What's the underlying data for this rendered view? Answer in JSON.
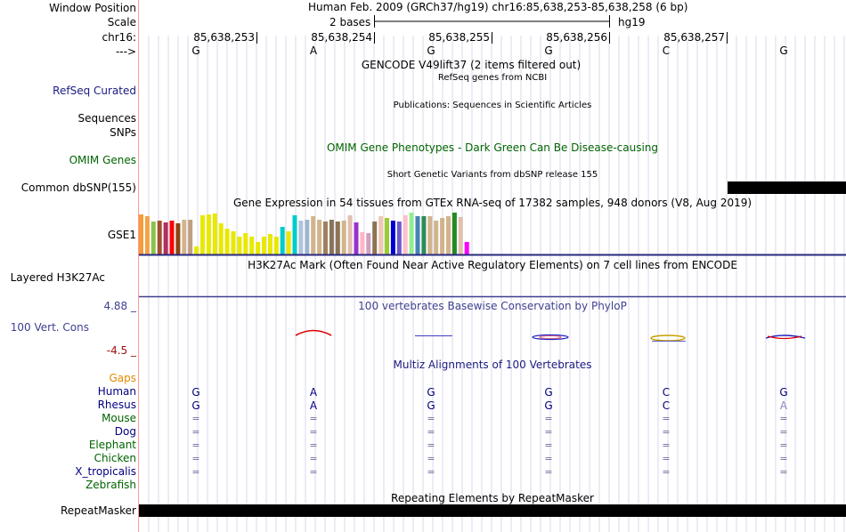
{
  "header": {
    "window_position_label": "Window Position",
    "window_position_value": "Human Feb. 2009 (GRCh37/hg19)   chr16:85,638,253-85,638,258 (6 bp)",
    "scale_label": "Scale",
    "scale_text": "2 bases",
    "assembly": "hg19",
    "chrom_label": "chr16:",
    "strand_label": "--->",
    "positions": [
      "85,638,253",
      "85,638,254",
      "85,638,255",
      "85,638,256",
      "85,638,257"
    ]
  },
  "bases": [
    "G",
    "A",
    "G",
    "G",
    "C",
    "G"
  ],
  "tracks": {
    "gencode_title": "GENCODE V49lift37 (2 items filtered out)",
    "refseq_subtitle": "RefSeq genes from NCBI",
    "refseq_label": "RefSeq Curated",
    "publications_title": "Publications: Sequences in Scientific Articles",
    "sequences_label": "Sequences",
    "snps_label": "SNPs",
    "omim_title": "OMIM Gene Phenotypes - Dark Green Can Be Disease-causing",
    "omim_label": "OMIM Genes",
    "dbsnp_title": "Short Genetic Variants from dbSNP release 155",
    "dbsnp_label": "Common dbSNP(155)",
    "gtex_title": "Gene Expression in 54 tissues from GTEx RNA-seq of 17382 samples, 948 donors (V8, Aug 2019)",
    "gtex_label": "GSE1",
    "h3k27_title": "H3K27Ac Mark (Often Found Near Active Regulatory Elements) on 7 cell lines from ENCODE",
    "h3k27_label": "Layered H3K27Ac",
    "cons_max": "4.88 _",
    "cons_min": "-4.5 _",
    "cons_title": "100 vertebrates Basewise Conservation by PhyloP",
    "cons_label": "100 Vert. Cons",
    "multiz_title": "Multiz Alignments of 100 Vertebrates",
    "repeat_title": "Repeating Elements by RepeatMasker",
    "repeat_label": "RepeatMasker"
  },
  "species": [
    {
      "name": "Gaps",
      "color": "#e08a00",
      "row": []
    },
    {
      "name": "Human",
      "color": "#000080",
      "row": [
        "G",
        "A",
        "G",
        "G",
        "C",
        "G"
      ]
    },
    {
      "name": "Rhesus",
      "color": "#000080",
      "row": [
        "G",
        "A",
        "G",
        "G",
        "C",
        "A"
      ]
    },
    {
      "name": "Mouse",
      "color": "#006400",
      "row": [
        "=",
        "=",
        "=",
        "=",
        "=",
        "="
      ]
    },
    {
      "name": "Dog",
      "color": "#000080",
      "row": [
        "=",
        "=",
        "=",
        "=",
        "=",
        "="
      ]
    },
    {
      "name": "Elephant",
      "color": "#006400",
      "row": [
        "=",
        "=",
        "=",
        "=",
        "=",
        "="
      ]
    },
    {
      "name": "Chicken",
      "color": "#006400",
      "row": [
        "=",
        "=",
        "=",
        "=",
        "=",
        "="
      ]
    },
    {
      "name": "X_tropicalis",
      "color": "#000080",
      "row": [
        "=",
        "=",
        "=",
        "=",
        "=",
        "="
      ]
    },
    {
      "name": "Zebrafish",
      "color": "#006400",
      "row": []
    }
  ],
  "gtex_bars": [
    {
      "v": 0.93,
      "c": "#f59b3a"
    },
    {
      "v": 0.9,
      "c": "#f1a348"
    },
    {
      "v": 0.78,
      "c": "#8bc34a"
    },
    {
      "v": 0.79,
      "c": "#a0522d"
    },
    {
      "v": 0.75,
      "c": "#b03060"
    },
    {
      "v": 0.8,
      "c": "#ff0000"
    },
    {
      "v": 0.72,
      "c": "#8b4513"
    },
    {
      "v": 0.82,
      "c": "#d2b48c"
    },
    {
      "v": 0.82,
      "c": "#c0a080"
    },
    {
      "v": 0.18,
      "c": "#e8e800"
    },
    {
      "v": 0.92,
      "c": "#e8e800"
    },
    {
      "v": 0.93,
      "c": "#e8e800"
    },
    {
      "v": 0.95,
      "c": "#e8e800"
    },
    {
      "v": 0.72,
      "c": "#e8e800"
    },
    {
      "v": 0.6,
      "c": "#e8e800"
    },
    {
      "v": 0.55,
      "c": "#e8e800"
    },
    {
      "v": 0.42,
      "c": "#e8e800"
    },
    {
      "v": 0.5,
      "c": "#e8e800"
    },
    {
      "v": 0.42,
      "c": "#e8e800"
    },
    {
      "v": 0.3,
      "c": "#e8e800"
    },
    {
      "v": 0.42,
      "c": "#e8e800"
    },
    {
      "v": 0.48,
      "c": "#e8e800"
    },
    {
      "v": 0.42,
      "c": "#e8e800"
    },
    {
      "v": 0.65,
      "c": "#00cccc"
    },
    {
      "v": 0.55,
      "c": "#e8e800"
    },
    {
      "v": 0.92,
      "c": "#00cccc"
    },
    {
      "v": 0.8,
      "c": "#b0c4de"
    },
    {
      "v": 0.82,
      "c": "#9fb6cd"
    },
    {
      "v": 0.9,
      "c": "#d2b48c"
    },
    {
      "v": 0.82,
      "c": "#d2b48c"
    },
    {
      "v": 0.78,
      "c": "#a08060"
    },
    {
      "v": 0.82,
      "c": "#8b7355"
    },
    {
      "v": 0.78,
      "c": "#8b7355"
    },
    {
      "v": 0.8,
      "c": "#d2b48c"
    },
    {
      "v": 0.91,
      "c": "#e0c0b0"
    },
    {
      "v": 0.75,
      "c": "#9932cc"
    },
    {
      "v": 0.52,
      "c": "#ffb6c1"
    },
    {
      "v": 0.5,
      "c": "#d0a0c0"
    },
    {
      "v": 0.78,
      "c": "#8b7355"
    },
    {
      "v": 0.9,
      "c": "#f0c8b0"
    },
    {
      "v": 0.85,
      "c": "#9acd32"
    },
    {
      "v": 0.8,
      "c": "#0000cd"
    },
    {
      "v": 0.77,
      "c": "#6a5acd"
    },
    {
      "v": 0.92,
      "c": "#ffc0cb"
    },
    {
      "v": 0.98,
      "c": "#90ee90"
    },
    {
      "v": 0.9,
      "c": "#4682b4"
    },
    {
      "v": 0.9,
      "c": "#2e8b57"
    },
    {
      "v": 0.9,
      "c": "#d2b48c"
    },
    {
      "v": 0.8,
      "c": "#d2b48c"
    },
    {
      "v": 0.85,
      "c": "#d2b48c"
    },
    {
      "v": 0.9,
      "c": "#d2b48c"
    },
    {
      "v": 0.97,
      "c": "#228b22"
    },
    {
      "v": 0.88,
      "c": "#e0c0b0"
    },
    {
      "v": 0.3,
      "c": "#ff00ff"
    }
  ]
}
